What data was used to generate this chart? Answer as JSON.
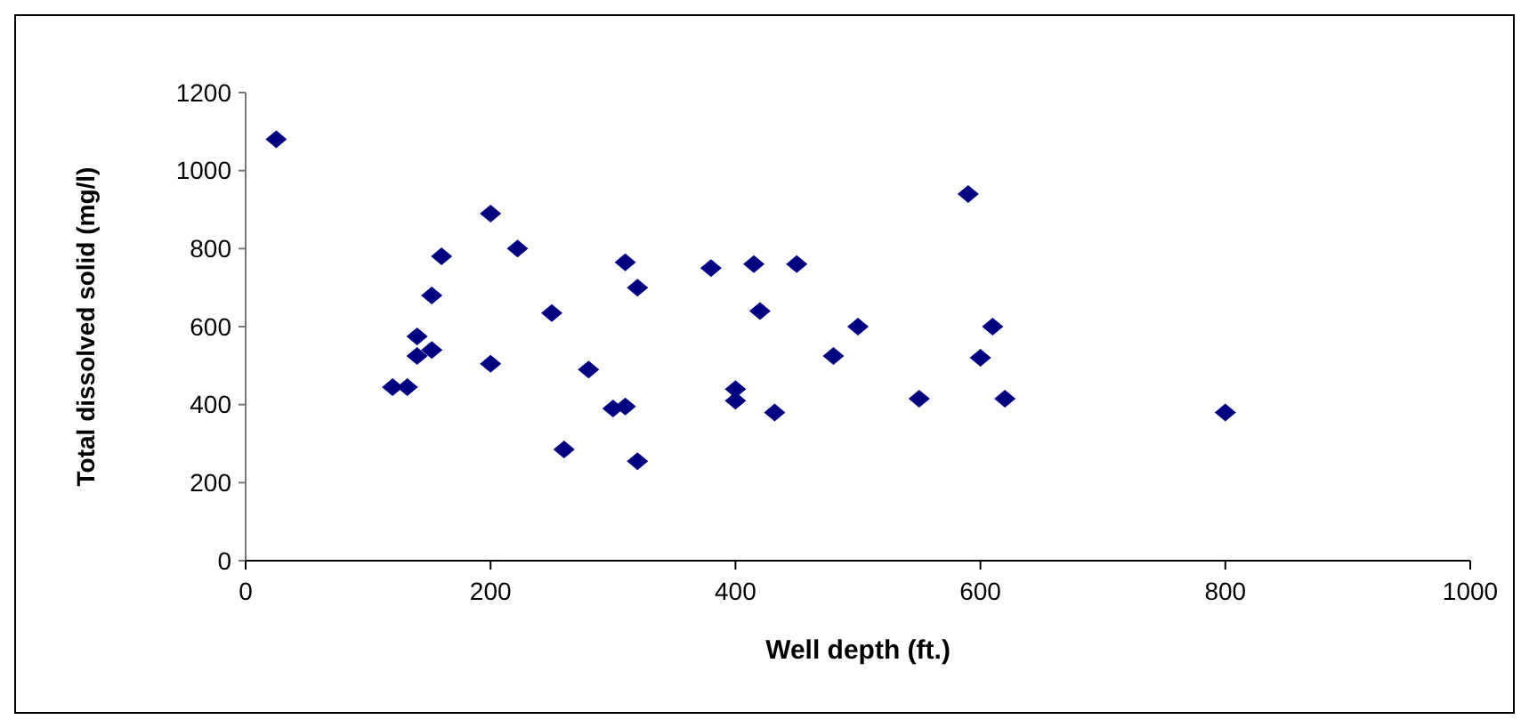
{
  "chart_data": {
    "type": "scatter",
    "xlabel": "Well depth (ft.)",
    "ylabel": "Total dissolved solid (mg/l)",
    "marker": "diamond",
    "grid": false,
    "xlim": [
      0,
      1000
    ],
    "xticks": [
      0,
      200,
      400,
      600,
      800,
      1000
    ],
    "ylim": [
      0,
      1200
    ],
    "yticks": [
      0,
      200,
      400,
      600,
      800,
      1000,
      1200
    ],
    "series": [
      {
        "color": "#000080",
        "x": [
          25,
          120,
          132,
          140,
          140,
          152,
          152,
          160,
          200,
          200,
          222,
          250,
          260,
          280,
          300,
          310,
          310,
          320,
          320,
          380,
          400,
          400,
          415,
          420,
          432,
          450,
          480,
          500,
          550,
          590,
          600,
          610,
          620,
          800
        ],
        "values": [
          1080,
          445,
          445,
          575,
          525,
          540,
          680,
          780,
          890,
          505,
          800,
          635,
          285,
          490,
          390,
          395,
          765,
          700,
          255,
          750,
          440,
          410,
          760,
          640,
          380,
          760,
          525,
          600,
          415,
          940,
          520,
          600,
          415,
          380
        ]
      }
    ]
  }
}
